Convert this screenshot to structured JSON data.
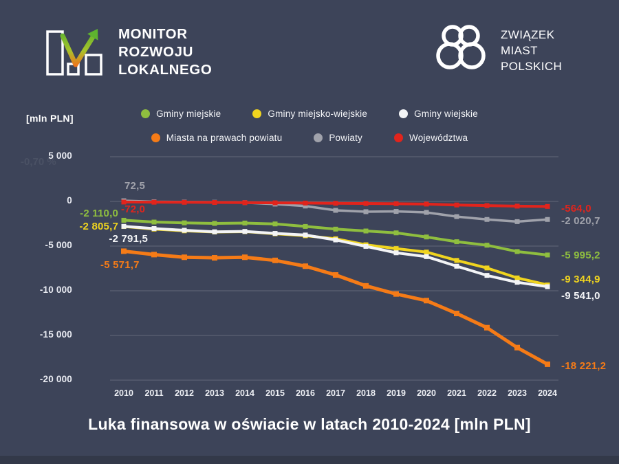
{
  "brand_left": {
    "lines": [
      "MONITOR",
      "ROZWOJU",
      "LOKALNEGO"
    ]
  },
  "brand_right": {
    "lines": [
      "ZWIĄZEK",
      "MIAST",
      "POLSKICH"
    ]
  },
  "unit_label": "[mln PLN]",
  "ghost_text": "-0,70 %",
  "title": "Luka finansowa w oświacie w latach 2010-2024 [mln PLN]",
  "colors": {
    "background": "#3d4459",
    "bottom_strip": "#333949",
    "grid": "rgba(255,255,255,0.16)",
    "text": "#ffffff",
    "logo_gradient_top": "#5eb32f",
    "logo_gradient_bottom": "#f0731c"
  },
  "chart_data": {
    "type": "line",
    "x": [
      2010,
      2011,
      2012,
      2013,
      2014,
      2015,
      2016,
      2017,
      2018,
      2019,
      2020,
      2021,
      2022,
      2023,
      2024
    ],
    "ylabel": "[mln PLN]",
    "ylim": [
      -20000,
      5000
    ],
    "yticks": [
      5000,
      0,
      -5000,
      -10000,
      -15000,
      -20000
    ],
    "ytick_labels": [
      "5 000",
      "0",
      "-5 000",
      "-10 000",
      "-15 000",
      "-20 000"
    ],
    "grid": true,
    "legend_position": "top",
    "series": [
      {
        "name": "Gminy miejskie",
        "color": "#8fbe3f",
        "z": 2,
        "line_width": 4,
        "marker_size": 7,
        "values": [
          -2110.0,
          -2310,
          -2400,
          -2460,
          -2420,
          -2520,
          -2800,
          -3100,
          -3310,
          -3520,
          -3980,
          -4510,
          -4900,
          -5610,
          -5995.2
        ],
        "start_label": "-2 110,0",
        "end_label": "-5 995,2"
      },
      {
        "name": "Gminy miejsko-wiejskie",
        "color": "#f0d41f",
        "z": 3,
        "line_width": 4,
        "marker_size": 7,
        "values": [
          -2805.7,
          -3100,
          -3290,
          -3420,
          -3380,
          -3620,
          -3840,
          -4180,
          -4850,
          -5280,
          -5670,
          -6600,
          -7450,
          -8560,
          -9344.9
        ],
        "start_label": "-2 805,7",
        "end_label": "-9 344,9"
      },
      {
        "name": "Gminy wiejskie",
        "color": "#f3f4f6",
        "z": 4,
        "line_width": 4,
        "marker_size": 7,
        "values": [
          -2791.5,
          -3040,
          -3230,
          -3400,
          -3360,
          -3580,
          -3760,
          -4310,
          -5030,
          -5750,
          -6180,
          -7250,
          -8280,
          -9050,
          -9541.0
        ],
        "start_label": "-2 791,5",
        "end_label": "-9 541,0"
      },
      {
        "name": "Miasta na prawach powiatu",
        "color": "#f57b17",
        "z": 5,
        "line_width": 5,
        "marker_size": 8,
        "values": [
          -5571.7,
          -5950,
          -6250,
          -6310,
          -6250,
          -6600,
          -7250,
          -8230,
          -9450,
          -10360,
          -11100,
          -12540,
          -14130,
          -16360,
          -18221.2
        ],
        "start_label": "-5 571,7",
        "end_label": "-18 221,2"
      },
      {
        "name": "Powiaty",
        "color": "#a0a2ab",
        "z": 0,
        "line_width": 3.5,
        "marker_size": 7,
        "values": [
          72.5,
          -40,
          -70,
          -90,
          -130,
          -300,
          -520,
          -1000,
          -1150,
          -1120,
          -1230,
          -1700,
          -2020,
          -2260,
          -2020.7
        ],
        "start_label": "72,5",
        "end_label": "-2 020,7"
      },
      {
        "name": "Województwa",
        "color": "#e1241c",
        "z": 1,
        "line_width": 4,
        "marker_size": 7,
        "values": [
          -72.0,
          -90,
          -100,
          -115,
          -135,
          -160,
          -185,
          -210,
          -235,
          -260,
          -300,
          -400,
          -470,
          -530,
          -564.0
        ],
        "start_label": "-72,0",
        "end_label": "-564,0"
      }
    ]
  }
}
